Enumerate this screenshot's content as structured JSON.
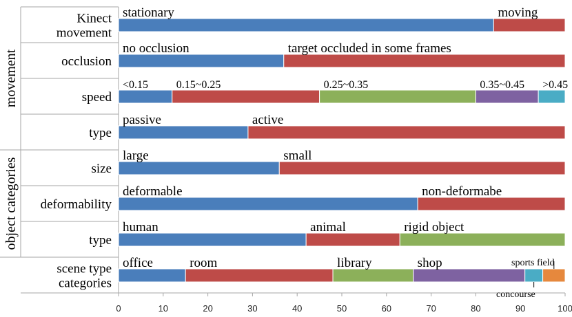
{
  "chart_data": {
    "type": "bar",
    "stacked": true,
    "orientation": "horizontal",
    "xlim": [
      0,
      100
    ],
    "x_ticks": [
      0,
      10,
      20,
      30,
      40,
      50,
      60,
      70,
      80,
      90,
      100
    ],
    "colors": {
      "blue": "#4a7ebb",
      "red": "#be4b48",
      "green": "#8cb05a",
      "purple": "#7e62a1",
      "teal": "#4aacc5",
      "orange": "#e6883d"
    },
    "groups": [
      {
        "label": "movement",
        "rows": [
          0,
          1,
          2,
          3
        ]
      },
      {
        "label": "object categories",
        "rows": [
          4,
          5,
          6
        ]
      }
    ],
    "rows": [
      {
        "label": "Kinect movement",
        "label_lines": [
          "Kinect",
          "movement"
        ],
        "segments": [
          {
            "name": "stationary",
            "value": 84,
            "color": "blue"
          },
          {
            "name": "moving",
            "value": 16,
            "color": "red"
          }
        ]
      },
      {
        "label": "occlusion",
        "label_lines": [
          "occlusion"
        ],
        "segments": [
          {
            "name": "no occlusion",
            "value": 37,
            "color": "blue"
          },
          {
            "name": "target occluded in some frames",
            "value": 63,
            "color": "red"
          }
        ]
      },
      {
        "label": "speed",
        "label_lines": [
          "speed"
        ],
        "segments": [
          {
            "name": "<0.15",
            "value": 12,
            "color": "blue"
          },
          {
            "name": "0.15~0.25",
            "value": 33,
            "color": "red"
          },
          {
            "name": "0.25~0.35",
            "value": 35,
            "color": "green"
          },
          {
            "name": "0.35~0.45",
            "value": 14,
            "color": "purple"
          },
          {
            "name": ">0.45",
            "value": 6,
            "color": "teal"
          }
        ]
      },
      {
        "label": "type",
        "label_lines": [
          "type"
        ],
        "segments": [
          {
            "name": "passive",
            "value": 29,
            "color": "blue"
          },
          {
            "name": "active",
            "value": 71,
            "color": "red"
          }
        ]
      },
      {
        "label": "size",
        "label_lines": [
          "size"
        ],
        "segments": [
          {
            "name": "large",
            "value": 36,
            "color": "blue"
          },
          {
            "name": "small",
            "value": 64,
            "color": "red"
          }
        ]
      },
      {
        "label": "deformability",
        "label_lines": [
          "deformability"
        ],
        "segments": [
          {
            "name": "deformable",
            "value": 67,
            "color": "blue"
          },
          {
            "name": "non-deformabe",
            "value": 33,
            "color": "red"
          }
        ]
      },
      {
        "label": "type",
        "label_lines": [
          "type"
        ],
        "segments": [
          {
            "name": "human",
            "value": 42,
            "color": "blue"
          },
          {
            "name": "animal",
            "value": 21,
            "color": "red"
          },
          {
            "name": "rigid object",
            "value": 37,
            "color": "green"
          }
        ]
      },
      {
        "label": "scene type categories",
        "label_lines": [
          "scene type",
          "categories"
        ],
        "segments": [
          {
            "name": "office",
            "value": 15,
            "color": "blue"
          },
          {
            "name": "room",
            "value": 33,
            "color": "red"
          },
          {
            "name": "library",
            "value": 18,
            "color": "green"
          },
          {
            "name": "shop",
            "value": 25,
            "color": "purple"
          },
          {
            "name": "concourse",
            "value": 4,
            "color": "teal"
          },
          {
            "name": "sports field",
            "value": 5,
            "color": "orange"
          }
        ]
      }
    ]
  }
}
